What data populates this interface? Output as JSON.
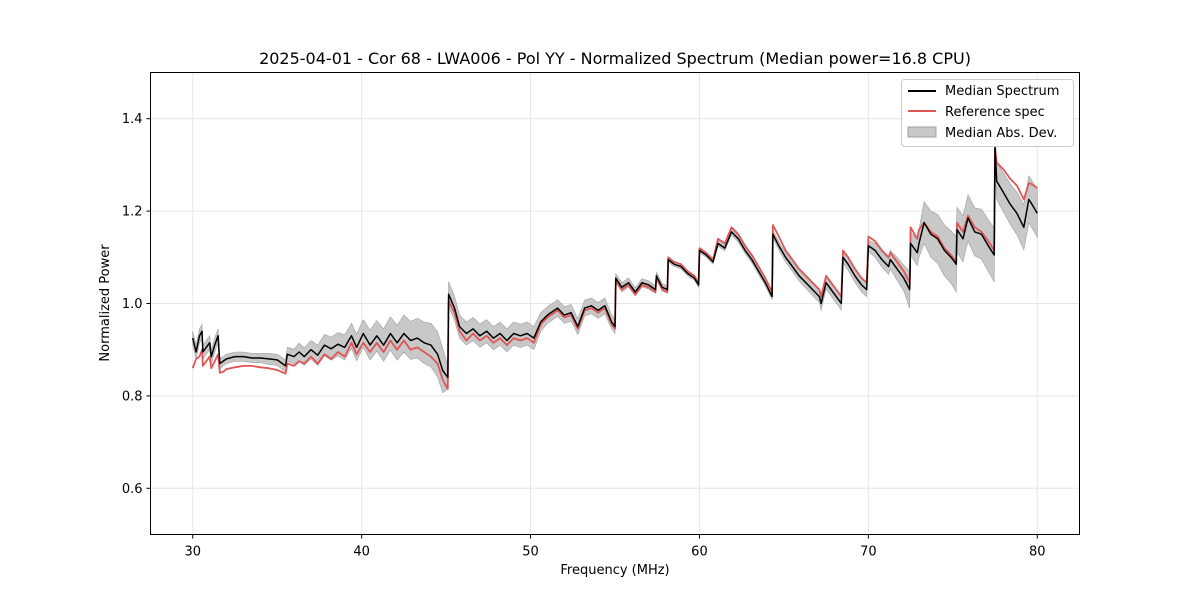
{
  "chart_data": {
    "type": "line",
    "title": "2025-04-01 - Cor 68 - LWA006 - Pol YY - Normalized Spectrum (Median power=16.8 CPU)",
    "xlabel": "Frequency (MHz)",
    "ylabel": "Normalized Power",
    "xlim": [
      27.5,
      82.5
    ],
    "ylim": [
      0.5,
      1.5
    ],
    "xticks": [
      30,
      40,
      50,
      60,
      70,
      80
    ],
    "yticks": [
      0.6,
      0.8,
      1.0,
      1.2,
      1.4
    ],
    "xtick_labels": [
      "30",
      "40",
      "50",
      "60",
      "70",
      "80"
    ],
    "ytick_labels": [
      "0.6",
      "0.8",
      "1.0",
      "1.2",
      "1.4"
    ],
    "grid": true,
    "legend_position": "top-right",
    "legend": {
      "median": "Median Spectrum",
      "reference": "Reference spec",
      "mad": "Median Abs. Dev."
    },
    "colors": {
      "median": "#000000",
      "reference": "#e05555",
      "mad_fill": "#c8c8c8",
      "mad_edge": "#a0a0a0",
      "grid": "#e6e6e6"
    },
    "series": [
      {
        "name": "Median Spectrum",
        "x": [
          30.0,
          30.2,
          30.4,
          30.55,
          30.6,
          30.8,
          31.0,
          31.1,
          31.3,
          31.5,
          31.6,
          31.8,
          32.0,
          32.5,
          33.0,
          33.5,
          34.0,
          34.5,
          35.0,
          35.5,
          35.6,
          36.0,
          36.3,
          36.6,
          37.0,
          37.4,
          37.8,
          38.2,
          38.6,
          39.0,
          39.4,
          39.7,
          40.1,
          40.5,
          40.9,
          41.3,
          41.7,
          42.1,
          42.5,
          42.9,
          43.3,
          43.7,
          44.1,
          44.5,
          44.8,
          45.1,
          45.15,
          45.5,
          45.8,
          46.2,
          46.6,
          47.0,
          47.4,
          47.8,
          48.2,
          48.6,
          49.0,
          49.4,
          49.8,
          50.2,
          50.6,
          51.0,
          51.2,
          51.6,
          52.0,
          52.4,
          52.8,
          53.2,
          53.6,
          54.0,
          54.4,
          54.8,
          55.0,
          55.05,
          55.4,
          55.8,
          56.2,
          56.6,
          57.0,
          57.4,
          57.45,
          57.8,
          58.1,
          58.15,
          58.5,
          58.9,
          59.3,
          59.7,
          59.95,
          60.0,
          60.4,
          60.8,
          61.1,
          61.5,
          61.9,
          62.3,
          62.7,
          63.1,
          63.5,
          63.9,
          64.3,
          64.35,
          64.7,
          65.1,
          65.5,
          65.9,
          66.3,
          66.7,
          67.1,
          67.2,
          67.5,
          67.9,
          68.2,
          68.4,
          68.5,
          68.8,
          69.2,
          69.6,
          69.9,
          70.0,
          70.4,
          70.8,
          71.2,
          71.3,
          71.7,
          72.1,
          72.45,
          72.5,
          72.9,
          73.0,
          73.3,
          73.7,
          74.1,
          74.5,
          74.9,
          75.2,
          75.25,
          75.6,
          75.9,
          76.3,
          76.7,
          77.1,
          77.45,
          77.5,
          77.6,
          78.0,
          78.4,
          78.8,
          79.2,
          79.5,
          79.6,
          80.0
        ],
        "values": [
          0.925,
          0.895,
          0.93,
          0.94,
          0.895,
          0.905,
          0.915,
          0.885,
          0.91,
          0.93,
          0.87,
          0.875,
          0.88,
          0.885,
          0.885,
          0.882,
          0.882,
          0.88,
          0.878,
          0.865,
          0.89,
          0.885,
          0.895,
          0.885,
          0.9,
          0.888,
          0.91,
          0.902,
          0.912,
          0.905,
          0.93,
          0.905,
          0.935,
          0.91,
          0.93,
          0.91,
          0.935,
          0.915,
          0.935,
          0.92,
          0.925,
          0.915,
          0.91,
          0.89,
          0.855,
          0.84,
          1.02,
          0.99,
          0.95,
          0.935,
          0.945,
          0.93,
          0.94,
          0.925,
          0.935,
          0.92,
          0.935,
          0.93,
          0.935,
          0.925,
          0.96,
          0.975,
          0.98,
          0.99,
          0.975,
          0.98,
          0.95,
          0.99,
          0.995,
          0.985,
          0.995,
          0.96,
          0.95,
          1.055,
          1.035,
          1.045,
          1.025,
          1.045,
          1.04,
          1.03,
          1.06,
          1.035,
          1.03,
          1.095,
          1.085,
          1.08,
          1.065,
          1.055,
          1.04,
          1.115,
          1.105,
          1.09,
          1.13,
          1.12,
          1.155,
          1.14,
          1.115,
          1.095,
          1.07,
          1.045,
          1.015,
          1.15,
          1.125,
          1.1,
          1.08,
          1.06,
          1.045,
          1.03,
          1.015,
          1.0,
          1.045,
          1.025,
          1.01,
          1.0,
          1.1,
          1.085,
          1.06,
          1.04,
          1.03,
          1.125,
          1.115,
          1.095,
          1.08,
          1.095,
          1.075,
          1.055,
          1.03,
          1.13,
          1.11,
          1.13,
          1.175,
          1.15,
          1.14,
          1.115,
          1.1,
          1.085,
          1.16,
          1.14,
          1.185,
          1.155,
          1.15,
          1.125,
          1.105,
          1.34,
          1.265,
          1.24,
          1.215,
          1.195,
          1.165,
          1.225,
          1.22,
          1.195
        ]
      },
      {
        "name": "Reference spec",
        "x": [
          30.0,
          30.2,
          30.4,
          30.55,
          30.6,
          30.8,
          31.0,
          31.1,
          31.3,
          31.5,
          31.6,
          31.8,
          32.0,
          32.5,
          33.0,
          33.5,
          34.0,
          34.5,
          35.0,
          35.5,
          35.6,
          36.0,
          36.3,
          36.6,
          37.0,
          37.4,
          37.8,
          38.2,
          38.6,
          39.0,
          39.4,
          39.7,
          40.1,
          40.5,
          40.9,
          41.3,
          41.7,
          42.1,
          42.5,
          42.9,
          43.3,
          43.7,
          44.1,
          44.5,
          44.8,
          45.1,
          45.15,
          45.5,
          45.8,
          46.2,
          46.6,
          47.0,
          47.4,
          47.8,
          48.2,
          48.6,
          49.0,
          49.4,
          49.8,
          50.2,
          50.6,
          51.0,
          51.2,
          51.6,
          52.0,
          52.4,
          52.8,
          53.2,
          53.6,
          54.0,
          54.4,
          54.8,
          55.0,
          55.05,
          55.4,
          55.8,
          56.2,
          56.6,
          57.0,
          57.4,
          57.45,
          57.8,
          58.1,
          58.15,
          58.5,
          58.9,
          59.3,
          59.7,
          59.95,
          60.0,
          60.4,
          60.8,
          61.1,
          61.5,
          61.9,
          62.3,
          62.7,
          63.1,
          63.5,
          63.9,
          64.3,
          64.35,
          64.7,
          65.1,
          65.5,
          65.9,
          66.3,
          66.7,
          67.1,
          67.2,
          67.5,
          67.9,
          68.2,
          68.4,
          68.5,
          68.8,
          69.2,
          69.6,
          69.9,
          70.0,
          70.4,
          70.8,
          71.2,
          71.3,
          71.7,
          72.1,
          72.45,
          72.5,
          72.9,
          73.0,
          73.3,
          73.7,
          74.1,
          74.5,
          74.9,
          75.2,
          75.25,
          75.6,
          75.9,
          76.3,
          76.7,
          77.1,
          77.45,
          77.5,
          77.6,
          78.0,
          78.4,
          78.8,
          79.2,
          79.5,
          79.6,
          80.0
        ],
        "values": [
          0.86,
          0.88,
          0.885,
          0.9,
          0.865,
          0.875,
          0.885,
          0.86,
          0.875,
          0.89,
          0.85,
          0.852,
          0.858,
          0.862,
          0.865,
          0.865,
          0.862,
          0.86,
          0.856,
          0.848,
          0.87,
          0.865,
          0.875,
          0.87,
          0.885,
          0.87,
          0.89,
          0.88,
          0.895,
          0.885,
          0.915,
          0.89,
          0.915,
          0.895,
          0.915,
          0.895,
          0.92,
          0.9,
          0.92,
          0.9,
          0.905,
          0.895,
          0.885,
          0.87,
          0.835,
          0.815,
          1.005,
          0.98,
          0.94,
          0.92,
          0.935,
          0.92,
          0.93,
          0.915,
          0.925,
          0.91,
          0.925,
          0.92,
          0.925,
          0.915,
          0.955,
          0.97,
          0.975,
          0.985,
          0.97,
          0.975,
          0.945,
          0.985,
          0.99,
          0.98,
          0.99,
          0.955,
          0.945,
          1.05,
          1.03,
          1.04,
          1.02,
          1.04,
          1.035,
          1.025,
          1.055,
          1.03,
          1.025,
          1.1,
          1.09,
          1.085,
          1.07,
          1.06,
          1.045,
          1.12,
          1.11,
          1.095,
          1.14,
          1.13,
          1.165,
          1.15,
          1.125,
          1.105,
          1.08,
          1.055,
          1.025,
          1.17,
          1.145,
          1.115,
          1.095,
          1.075,
          1.06,
          1.045,
          1.03,
          1.015,
          1.06,
          1.04,
          1.025,
          1.015,
          1.115,
          1.1,
          1.075,
          1.055,
          1.045,
          1.145,
          1.135,
          1.115,
          1.1,
          1.11,
          1.09,
          1.07,
          1.045,
          1.165,
          1.14,
          1.16,
          1.175,
          1.155,
          1.145,
          1.12,
          1.105,
          1.09,
          1.175,
          1.155,
          1.19,
          1.165,
          1.155,
          1.135,
          1.115,
          1.335,
          1.305,
          1.29,
          1.27,
          1.255,
          1.225,
          1.26,
          1.26,
          1.25
        ]
      }
    ],
    "mad_band": {
      "name": "Median Abs. Dev.",
      "x": [
        30.0,
        30.2,
        30.4,
        30.55,
        30.6,
        30.8,
        31.0,
        31.1,
        31.3,
        31.5,
        31.6,
        31.8,
        32.0,
        32.5,
        33.0,
        33.5,
        34.0,
        34.5,
        35.0,
        35.5,
        35.6,
        36.0,
        36.3,
        36.6,
        37.0,
        37.4,
        37.8,
        38.2,
        38.6,
        39.0,
        39.4,
        39.7,
        40.1,
        40.5,
        40.9,
        41.3,
        41.7,
        42.1,
        42.5,
        42.9,
        43.3,
        43.7,
        44.1,
        44.5,
        44.8,
        45.1,
        45.15,
        45.5,
        45.8,
        46.2,
        46.6,
        47.0,
        47.4,
        47.8,
        48.2,
        48.6,
        49.0,
        49.4,
        49.8,
        50.2,
        50.6,
        51.0,
        51.2,
        51.6,
        52.0,
        52.4,
        52.8,
        53.2,
        53.6,
        54.0,
        54.4,
        54.8,
        55.0,
        55.05,
        55.4,
        55.8,
        56.2,
        56.6,
        57.0,
        57.4,
        57.45,
        57.8,
        58.1,
        58.15,
        58.5,
        58.9,
        59.3,
        59.7,
        59.95,
        60.0,
        60.4,
        60.8,
        61.1,
        61.5,
        61.9,
        62.3,
        62.7,
        63.1,
        63.5,
        63.9,
        64.3,
        64.35,
        64.7,
        65.1,
        65.5,
        65.9,
        66.3,
        66.7,
        67.1,
        67.2,
        67.5,
        67.9,
        68.2,
        68.4,
        68.5,
        68.8,
        69.2,
        69.6,
        69.9,
        70.0,
        70.4,
        70.8,
        71.2,
        71.3,
        71.7,
        72.1,
        72.45,
        72.5,
        72.9,
        73.0,
        73.3,
        73.7,
        74.1,
        74.5,
        74.9,
        75.2,
        75.25,
        75.6,
        75.9,
        76.3,
        76.7,
        77.1,
        77.45,
        77.5,
        77.6,
        78.0,
        78.4,
        78.8,
        79.2,
        79.5,
        79.6,
        80.0
      ],
      "lower": [
        0.91,
        0.88,
        0.915,
        0.925,
        0.88,
        0.89,
        0.9,
        0.87,
        0.895,
        0.915,
        0.858,
        0.865,
        0.87,
        0.875,
        0.875,
        0.872,
        0.872,
        0.868,
        0.866,
        0.852,
        0.875,
        0.869,
        0.876,
        0.866,
        0.88,
        0.866,
        0.887,
        0.877,
        0.887,
        0.878,
        0.903,
        0.876,
        0.905,
        0.878,
        0.897,
        0.875,
        0.899,
        0.877,
        0.895,
        0.879,
        0.882,
        0.87,
        0.863,
        0.841,
        0.807,
        0.815,
        0.993,
        0.964,
        0.925,
        0.91,
        0.92,
        0.905,
        0.915,
        0.9,
        0.91,
        0.895,
        0.91,
        0.905,
        0.91,
        0.9,
        0.94,
        0.957,
        0.962,
        0.972,
        0.957,
        0.962,
        0.933,
        0.973,
        0.978,
        0.968,
        0.978,
        0.945,
        0.935,
        1.045,
        1.025,
        1.035,
        1.016,
        1.036,
        1.031,
        1.022,
        1.052,
        1.027,
        1.022,
        1.09,
        1.08,
        1.075,
        1.06,
        1.05,
        1.035,
        1.11,
        1.1,
        1.085,
        1.124,
        1.114,
        1.148,
        1.133,
        1.108,
        1.088,
        1.063,
        1.038,
        1.008,
        1.142,
        1.116,
        1.09,
        1.07,
        1.049,
        1.033,
        1.017,
        1.002,
        0.985,
        1.032,
        1.011,
        0.996,
        0.986,
        1.088,
        1.072,
        1.046,
        1.025,
        1.015,
        1.113,
        1.1,
        1.079,
        1.063,
        1.075,
        1.05,
        1.027,
        0.99,
        1.105,
        1.082,
        1.1,
        1.13,
        1.1,
        1.087,
        1.06,
        1.043,
        1.025,
        1.112,
        1.09,
        1.135,
        1.103,
        1.096,
        1.069,
        1.047,
        1.302,
        1.225,
        1.198,
        1.171,
        1.149,
        1.116,
        1.174,
        1.169,
        1.143
      ],
      "upper": [
        0.94,
        0.91,
        0.945,
        0.955,
        0.91,
        0.92,
        0.93,
        0.9,
        0.925,
        0.945,
        0.882,
        0.885,
        0.89,
        0.895,
        0.895,
        0.892,
        0.892,
        0.892,
        0.89,
        0.878,
        0.905,
        0.901,
        0.914,
        0.904,
        0.92,
        0.91,
        0.933,
        0.927,
        0.937,
        0.932,
        0.957,
        0.934,
        0.965,
        0.942,
        0.963,
        0.945,
        0.971,
        0.953,
        0.975,
        0.961,
        0.968,
        0.96,
        0.957,
        0.939,
        0.903,
        0.865,
        1.047,
        1.016,
        0.975,
        0.96,
        0.97,
        0.955,
        0.965,
        0.95,
        0.96,
        0.945,
        0.96,
        0.955,
        0.96,
        0.95,
        0.98,
        0.993,
        0.998,
        1.008,
        0.993,
        0.998,
        0.967,
        1.007,
        1.012,
        1.002,
        1.012,
        0.975,
        0.965,
        1.065,
        1.045,
        1.055,
        1.034,
        1.054,
        1.049,
        1.038,
        1.068,
        1.043,
        1.038,
        1.1,
        1.09,
        1.085,
        1.07,
        1.06,
        1.045,
        1.12,
        1.11,
        1.095,
        1.136,
        1.126,
        1.162,
        1.147,
        1.122,
        1.102,
        1.077,
        1.052,
        1.022,
        1.158,
        1.134,
        1.11,
        1.09,
        1.071,
        1.057,
        1.043,
        1.028,
        1.015,
        1.058,
        1.039,
        1.024,
        1.014,
        1.112,
        1.098,
        1.074,
        1.055,
        1.045,
        1.137,
        1.13,
        1.111,
        1.097,
        1.115,
        1.1,
        1.083,
        1.07,
        1.155,
        1.138,
        1.16,
        1.22,
        1.2,
        1.193,
        1.17,
        1.157,
        1.145,
        1.208,
        1.19,
        1.235,
        1.207,
        1.204,
        1.181,
        1.163,
        1.378,
        1.305,
        1.282,
        1.259,
        1.241,
        1.214,
        1.276,
        1.271,
        1.247
      ]
    }
  }
}
